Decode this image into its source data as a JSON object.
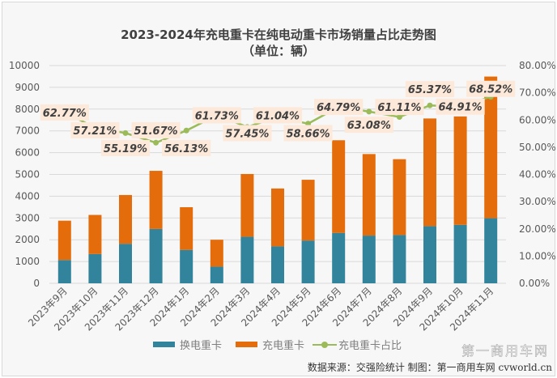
{
  "chart_data": {
    "type": "bar",
    "title": "2023-2024年充电重卡在纯电动重卡市场销量占比走势图",
    "subtitle": "（单位：辆）",
    "categories": [
      "2023年9月",
      "2023年10月",
      "2023年11月",
      "2023年12月",
      "2024年1月",
      "2024年2月",
      "2024年3月",
      "2024年4月",
      "2024年5月",
      "2024年6月",
      "2024年7月",
      "2024年8月",
      "2024年9月",
      "2024年10月",
      "2024年11月"
    ],
    "series": [
      {
        "name": "换电重卡",
        "kind": "stacked-bar",
        "axis": "left",
        "color": "#31849b",
        "values": [
          1070,
          1345,
          1815,
          2495,
          1535,
          765,
          2135,
          1695,
          1965,
          2315,
          2190,
          2215,
          2625,
          2685,
          2990
        ]
      },
      {
        "name": "充电重卡",
        "kind": "stacked-bar",
        "axis": "left",
        "color": "#e46c0a",
        "values": [
          1805,
          1795,
          2240,
          2670,
          1960,
          1235,
          2885,
          2660,
          2790,
          4255,
          3745,
          3485,
          4945,
          4980,
          6505
        ]
      },
      {
        "name": "充电重卡占比",
        "kind": "line",
        "axis": "right",
        "color": "#9bbb59",
        "values": [
          62.77,
          57.21,
          55.19,
          51.67,
          56.13,
          61.73,
          57.45,
          61.04,
          58.66,
          64.79,
          63.08,
          61.11,
          65.37,
          64.91,
          68.52
        ],
        "labels": [
          "62.77%",
          "57.21%",
          "55.19%",
          "51.67%",
          "56.13%",
          "61.73%",
          "57.45%",
          "61.04%",
          "58.66%",
          "64.79%",
          "63.08%",
          "61.11%",
          "65.37%",
          "64.91%",
          "68.52%"
        ]
      }
    ],
    "y_left": {
      "range": [
        0,
        10000
      ],
      "ticks": [
        "0",
        "1000",
        "2000",
        "3000",
        "4000",
        "5000",
        "6000",
        "7000",
        "8000",
        "9000",
        "10000"
      ]
    },
    "y_right": {
      "range": [
        0,
        80
      ],
      "ticks": [
        "0.00%",
        "10.00%",
        "20.00%",
        "30.00%",
        "40.00%",
        "50.00%",
        "60.00%",
        "70.00%",
        "80.00%"
      ]
    },
    "grid": true,
    "legend_position": "bottom",
    "source": "数据来源：交强险统计  制图：第一商用车网 cvworld.cn",
    "watermark": "第一商用车网"
  }
}
